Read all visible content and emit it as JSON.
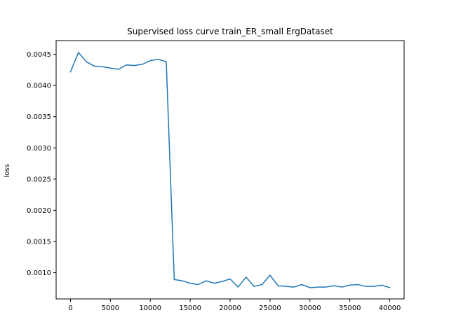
{
  "chart_data": {
    "type": "line",
    "title": "Supervised loss curve train_ER_small ErgDataset",
    "xlabel": "",
    "ylabel": "loss",
    "xlim": [
      -1800,
      41800
    ],
    "ylim": [
      0.00058,
      0.00472
    ],
    "xticks": [
      0,
      5000,
      10000,
      15000,
      20000,
      25000,
      30000,
      35000,
      40000
    ],
    "xtick_labels": [
      "0",
      "5000",
      "10000",
      "15000",
      "20000",
      "25000",
      "30000",
      "35000",
      "40000"
    ],
    "yticks": [
      0.001,
      0.0015,
      0.002,
      0.0025,
      0.003,
      0.0035,
      0.004,
      0.0045
    ],
    "ytick_labels": [
      "0.0010",
      "0.0015",
      "0.0020",
      "0.0025",
      "0.0030",
      "0.0035",
      "0.0040",
      "0.0045"
    ],
    "grid": false,
    "series": [
      {
        "color": "#1f77b4",
        "x": [
          0,
          1000,
          2000,
          3000,
          4000,
          5000,
          6000,
          7000,
          8000,
          9000,
          10000,
          11000,
          12000,
          13000,
          14000,
          15000,
          16000,
          17000,
          18000,
          19000,
          20000,
          21000,
          22000,
          23000,
          24000,
          25000,
          26000,
          27000,
          28000,
          29000,
          30000,
          31000,
          32000,
          33000,
          34000,
          35000,
          36000,
          37000,
          38000,
          39000,
          40000
        ],
        "y": [
          0.00422,
          0.00453,
          0.00438,
          0.00431,
          0.0043,
          0.00428,
          0.00426,
          0.00433,
          0.00432,
          0.00434,
          0.0044,
          0.00442,
          0.00438,
          0.00089,
          0.00087,
          0.00083,
          0.00081,
          0.00087,
          0.00083,
          0.00086,
          0.0009,
          0.00077,
          0.00093,
          0.00078,
          0.00081,
          0.00096,
          0.00079,
          0.00078,
          0.00077,
          0.00081,
          0.00076,
          0.00077,
          0.00077,
          0.00079,
          0.00077,
          0.0008,
          0.00081,
          0.00078,
          0.00078,
          0.0008,
          0.00076
        ]
      }
    ]
  }
}
